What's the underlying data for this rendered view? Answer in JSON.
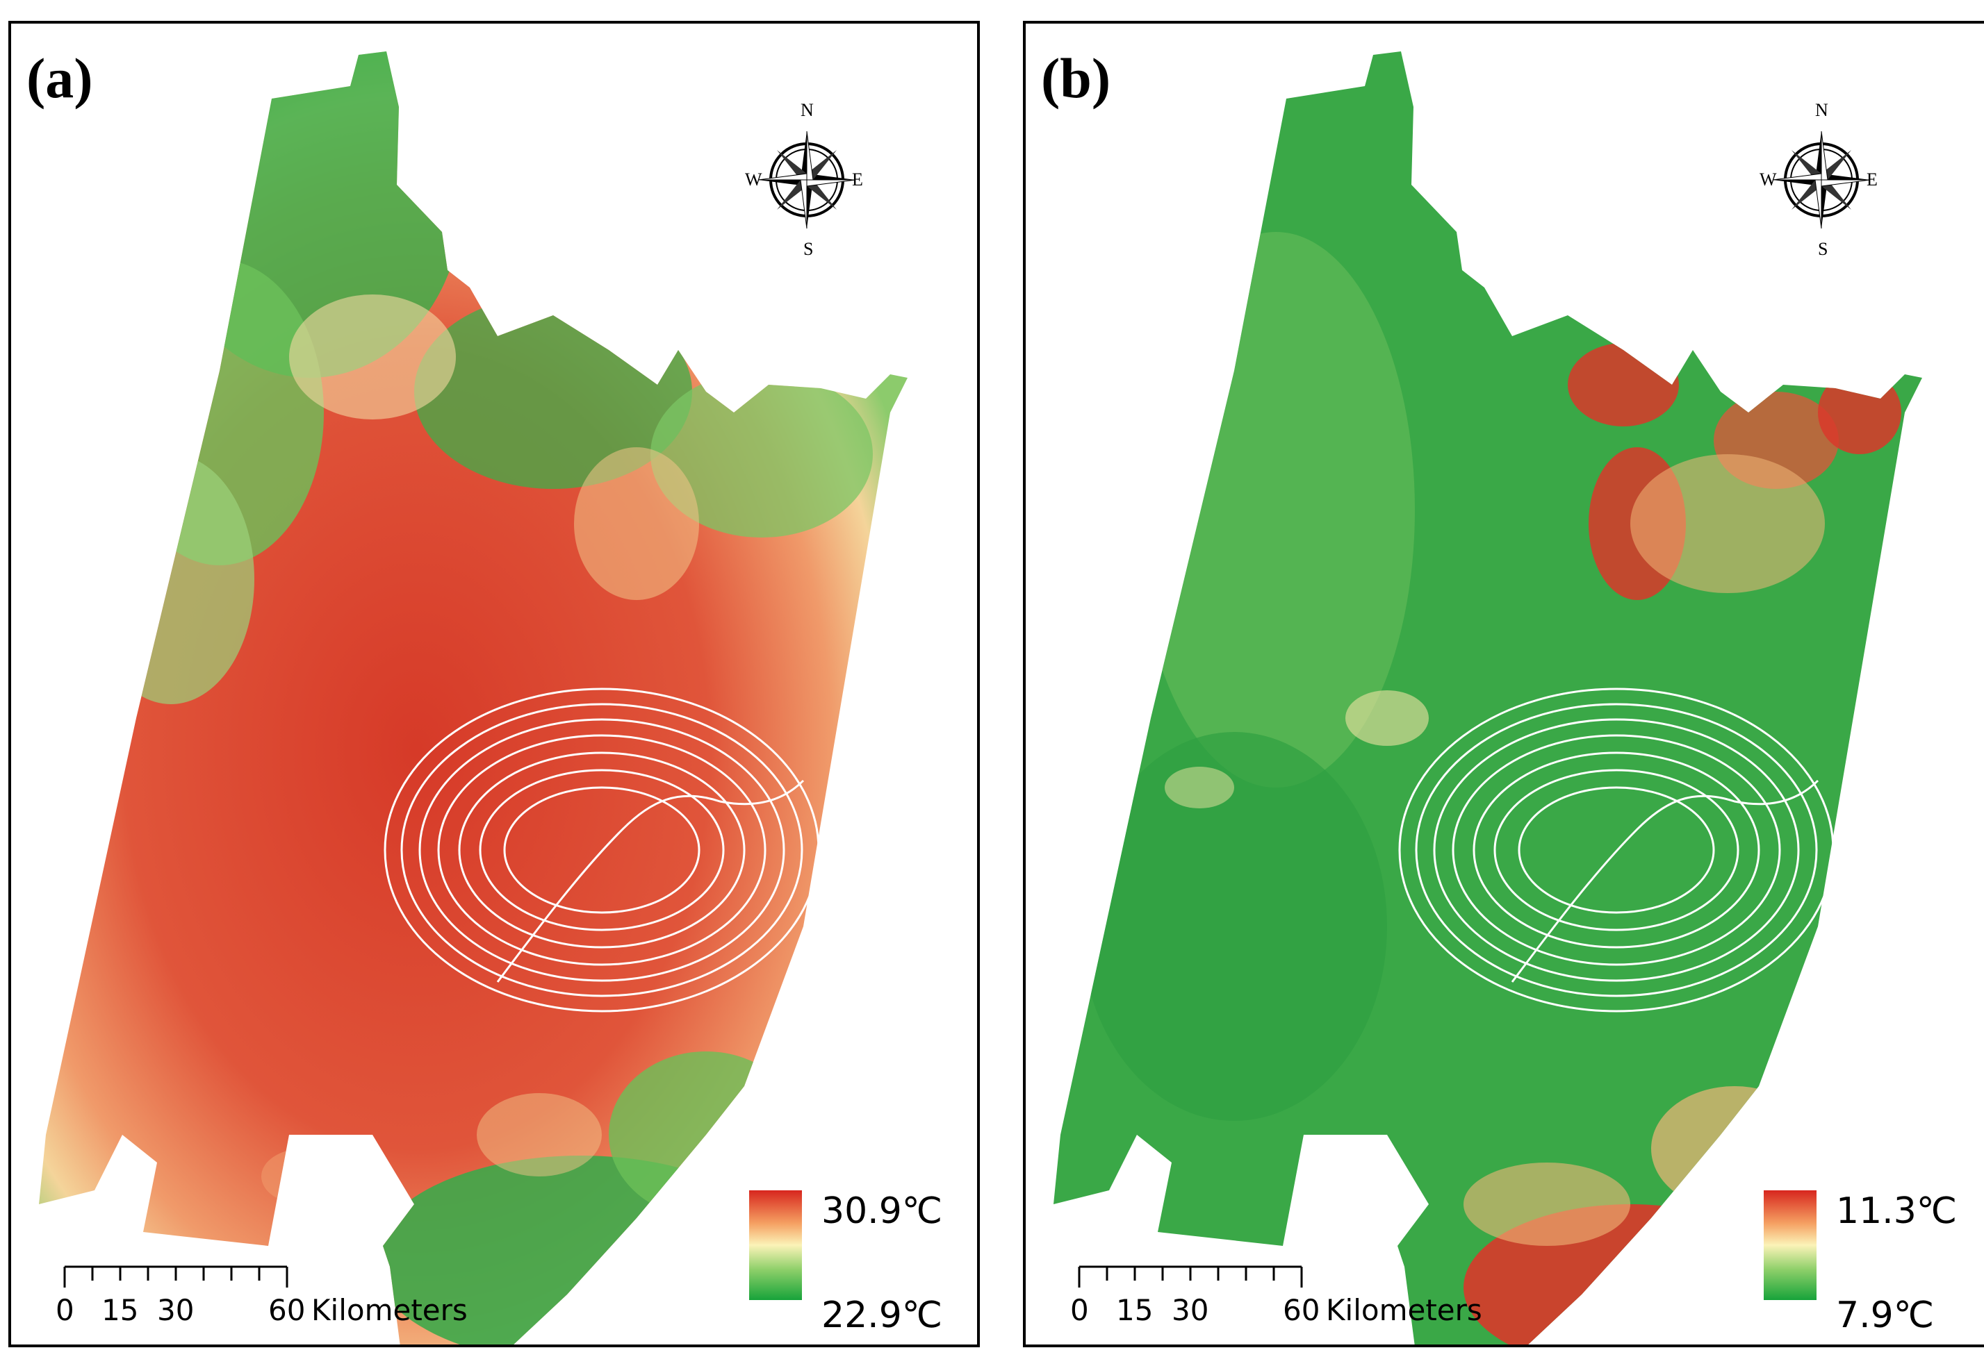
{
  "panels": [
    {
      "label": "(a)",
      "legend": {
        "max": "30.9℃",
        "min": "22.9℃",
        "colors": [
          "#d7261e",
          "#f5a062",
          "#fbf3b8",
          "#8fd06a",
          "#17a33a"
        ]
      },
      "compass": {
        "n": "N",
        "s": "S",
        "e": "E",
        "w": "W"
      },
      "scale": {
        "ticks": [
          "0",
          "15",
          "30",
          "60"
        ],
        "unit": "Kilometers"
      },
      "map_colors": {
        "hot": "#dc4a32",
        "warm": "#ef8a5a",
        "mid": "#f7d89a",
        "cool": "#82c96a",
        "cold": "#1f9e3d"
      }
    },
    {
      "label": "(b)",
      "legend": {
        "max": "11.3℃",
        "min": "7.9℃",
        "colors": [
          "#d7261e",
          "#f5a062",
          "#fbf3b8",
          "#8fd06a",
          "#17a33a"
        ]
      },
      "compass": {
        "n": "N",
        "s": "S",
        "e": "E",
        "w": "W"
      },
      "scale": {
        "ticks": [
          "0",
          "15",
          "30",
          "60"
        ],
        "unit": "Kilometers"
      },
      "map_colors": {
        "hot": "#d93a28",
        "warm": "#ef8a5a",
        "mid": "#f3e6a4",
        "cool": "#6dbd55",
        "cold": "#2aa043"
      }
    }
  ]
}
